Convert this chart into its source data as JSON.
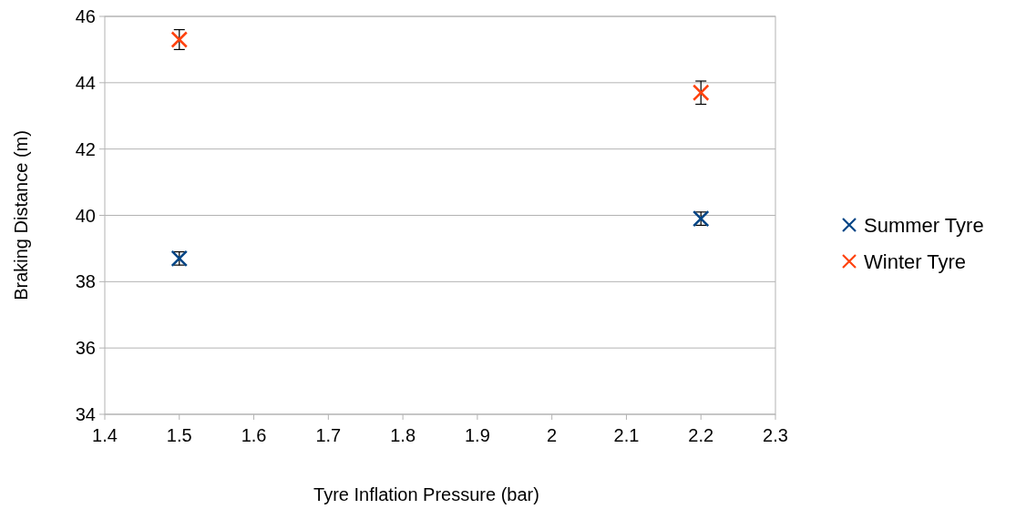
{
  "chart_data": {
    "type": "scatter",
    "xlabel": "Tyre Inflation Pressure (bar)",
    "ylabel": "Braking Distance (m)",
    "xlim": [
      1.4,
      2.3
    ],
    "xticks": [
      1.4,
      1.5,
      1.6,
      1.7,
      1.8,
      1.9,
      2,
      2.1,
      2.2,
      2.3
    ],
    "x": [
      1.5,
      2.2
    ],
    "ylim": [
      34,
      46
    ],
    "yticks": [
      34,
      36,
      38,
      40,
      42,
      44,
      46
    ],
    "grid": "y",
    "legend": "right",
    "marker": "cross",
    "series": [
      {
        "name": "Summer Tyre",
        "color": "#004586",
        "values": [
          38.7,
          39.9
        ],
        "errors": [
          0.2,
          0.2
        ]
      },
      {
        "name": "Winter Tyre",
        "color": "#ff420e",
        "values": [
          45.3,
          43.7
        ],
        "errors": [
          0.3,
          0.35
        ]
      }
    ]
  }
}
